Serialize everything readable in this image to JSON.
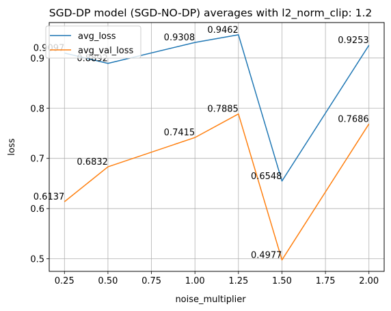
{
  "chart_data": {
    "type": "line",
    "title": "SGD-DP model (SGD-NO-DP) averages with l2_norm_clip: 1.2",
    "xlabel": "noise_multiplier",
    "ylabel": "loss",
    "x": [
      0.25,
      0.5,
      1.0,
      1.25,
      1.5,
      2.0
    ],
    "xticks": [
      "0.25",
      "0.50",
      "0.75",
      "1.00",
      "1.25",
      "1.50",
      "1.75",
      "2.00"
    ],
    "yticks": [
      "0.5",
      "0.6",
      "0.7",
      "0.8",
      "0.9"
    ],
    "xlim": [
      0.1625,
      2.0875
    ],
    "ylim": [
      0.475,
      0.9705
    ],
    "grid": true,
    "legend_position": "top-left",
    "series": [
      {
        "name": "avg_loss",
        "color": "#1f77b4",
        "values": [
          0.9097,
          0.8892,
          0.9308,
          0.9462,
          0.6548,
          0.9253
        ],
        "labels": [
          "0.9097",
          "0.8892",
          "0.9308",
          "0.9462",
          "0.6548",
          "0.9253"
        ]
      },
      {
        "name": "avg_val_loss",
        "color": "#ff7f0e",
        "values": [
          0.6137,
          0.6832,
          0.7415,
          0.7885,
          0.4977,
          0.7686
        ],
        "labels": [
          "0.6137",
          "0.6832",
          "0.7415",
          "0.7885",
          "0.4977",
          "0.7686"
        ]
      }
    ]
  }
}
